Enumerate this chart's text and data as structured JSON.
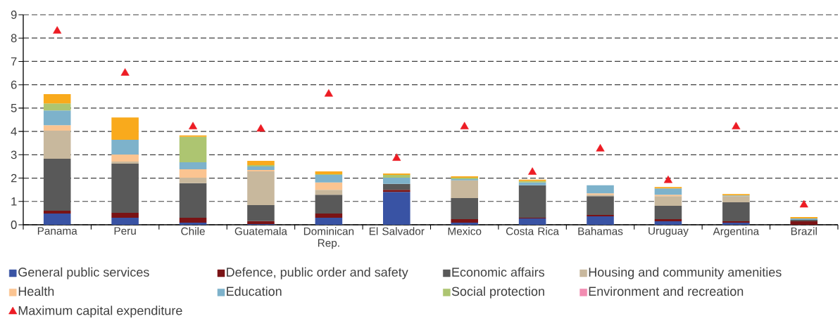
{
  "chart_data": {
    "type": "bar",
    "stacked": true,
    "categories": [
      "Panama",
      "Peru",
      "Chile",
      "Guatemala",
      "Dominican Rep.",
      "El Salvador",
      "Mexico",
      "Costa Rica",
      "Bahamas",
      "Uruguay",
      "Argentina",
      "Brazil"
    ],
    "series": [
      {
        "name": "General public services",
        "color": "#3953A4",
        "values": [
          0.48,
          0.3,
          0.09,
          0.03,
          0.3,
          1.41,
          0.09,
          0.27,
          0.36,
          0.15,
          0.09,
          null
        ]
      },
      {
        "name": "Defence, public order and safety",
        "color": "#7A1315",
        "values": [
          0.12,
          0.21,
          0.21,
          0.13,
          0.18,
          0.09,
          0.15,
          0.03,
          0.06,
          0.09,
          0.06,
          0.15
        ]
      },
      {
        "name": "Economic affairs",
        "color": "#595959",
        "values": [
          2.23,
          2.11,
          1.48,
          0.68,
          0.81,
          0.25,
          0.9,
          1.39,
          0.81,
          0.57,
          0.81,
          0.06
        ]
      },
      {
        "name": "Housing and community amenities",
        "color": "#C8B89D",
        "values": [
          1.2,
          0.09,
          0.24,
          1.45,
          0.21,
          null,
          0.76,
          null,
          0.06,
          0.42,
          0.27,
          null
        ]
      },
      {
        "name": "Health",
        "color": "#FBC491",
        "values": [
          0.24,
          0.3,
          0.36,
          0.06,
          0.31,
          null,
          null,
          null,
          0.06,
          0.06,
          null,
          null
        ]
      },
      {
        "name": "Education",
        "color": "#7DB2CB",
        "values": [
          0.63,
          0.63,
          0.3,
          0.15,
          0.33,
          0.27,
          0.06,
          0.12,
          0.34,
          0.27,
          0.03,
          0.06
        ]
      },
      {
        "name": "Social protection",
        "color": "#ADC571",
        "values": [
          0.3,
          null,
          1.09,
          0.06,
          0.03,
          0.12,
          0.06,
          0.06,
          null,
          null,
          null,
          null
        ]
      },
      {
        "name": "Environment and recreation",
        "color": "#F28CB1",
        "values": [
          null,
          null,
          null,
          null,
          null,
          null,
          null,
          null,
          null,
          null,
          null,
          null
        ]
      },
      {
        "color": "#F9AA1C",
        "values": [
          0.4,
          0.96,
          0.06,
          0.18,
          0.12,
          0.06,
          0.06,
          0.06,
          null,
          0.06,
          0.06,
          0.06
        ]
      },
      {
        "name": "Maximum capital expenditure",
        "type": "scatter",
        "marker": "triangle",
        "color": "#ED1C24",
        "values": [
          8.3,
          6.5,
          4.2,
          4.1,
          5.6,
          2.85,
          4.2,
          2.25,
          3.25,
          1.9,
          4.2,
          0.85
        ]
      }
    ],
    "ylim": [
      0,
      9
    ],
    "yticks": [
      0,
      1,
      2,
      3,
      4,
      5,
      6,
      7,
      8,
      9
    ],
    "grid": "y",
    "legend": "bottom"
  }
}
